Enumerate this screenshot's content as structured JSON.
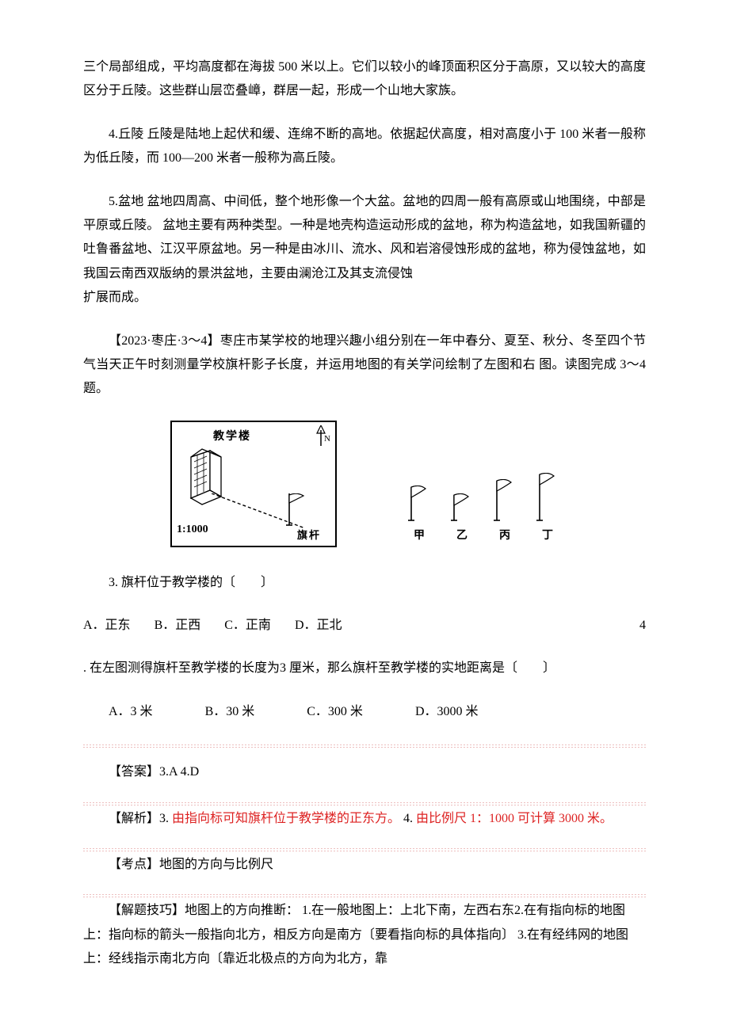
{
  "p1": "三个局部组成，平均高度都在海拔 500 米以上。它们以较小的峰顶面积区分于高原，又以较大的高度区分于丘陵。这些群山层峦叠嶂，群居一起，形成一个山地大家族。",
  "p2": "4.丘陵 丘陵是陆地上起伏和缓、连绵不断的高地。依据起伏高度，相对高度小于 100 米者一般称为低丘陵，而 100—200 米者一般称为高丘陵。",
  "p3": "5.盆地 盆地四周高、中间低，整个地形像一个大盆。盆地的四周一般有高原或山地围绕，中部是平原或丘陵。 盆地主要有两种类型。一种是地壳构造运动形成的盆地，称为构造盆地，如我国新疆的吐鲁番盆地、江汉平原盆地。另一种是由冰川、流水、风和岩溶侵蚀形成的盆地，称为侵蚀盆地，如我国云南西双版纳的景洪盆地，主要由澜沧江及其支流侵蚀",
  "p3b": "扩展而成。",
  "p4": "【2023·枣庄·3～4】枣庄市某学校的地理兴趣小组分别在一年中春分、夏至、秋分、冬至四个节气当天正午时刻测量学校旗杆影子长度，并运用地图的有关学问绘制了左图和右 图。读图完成 3～4 题。",
  "fig": {
    "buildingLabel": "教学楼",
    "northLabel": "N",
    "scaleLabel": "1:1000",
    "flagLabel": "旗杆",
    "flags": [
      {
        "label": "甲",
        "pole": 40,
        "flagW": 18,
        "flagH": 13
      },
      {
        "label": "乙",
        "pole": 30,
        "flagW": 18,
        "flagH": 13
      },
      {
        "label": "丙",
        "pole": 48,
        "flagW": 18,
        "flagH": 13
      },
      {
        "label": "丁",
        "pole": 56,
        "flagW": 18,
        "flagH": 13
      }
    ],
    "colors": {
      "line": "#000000",
      "bg": "#ffffff"
    }
  },
  "q3": {
    "stem": "3. 旗杆位于教学楼的〔　　〕",
    "A": "A．正东",
    "B": "B．正西",
    "C": "C．正南",
    "D": "D．正北",
    "trail": "4"
  },
  "q4": {
    "stem": ". 在左图测得旗杆至教学楼的长度为3  厘米，那么旗杆至教学楼的实地距离是〔　　〕",
    "A": "A．3 米",
    "B": "B．30 米",
    "C": "C．300 米",
    "D": "D．3000 米"
  },
  "answers": {
    "ans": "【答案】3.A  4.D",
    "analysisLabel": "【解析】3.",
    "analysis3": "由指向标可知旗杆位于教学楼的正东方。",
    "analysis4label": "4.",
    "analysis4": "由比例尺 1：1000 可计算 3000 米。",
    "topic": "【考点】地图的方向与比例尺",
    "skill": "【解题技巧】地图上的方向推断： 1.在一般地图上：上北下南，左西右东2.在有指向标的地图上：指向标的箭头一般指向北方，相反方向是南方〔要看指向标的具体指向〕 3.在有经纬网的地图上：经线指示南北方向〔靠近北极点的方向为北方，靠"
  }
}
